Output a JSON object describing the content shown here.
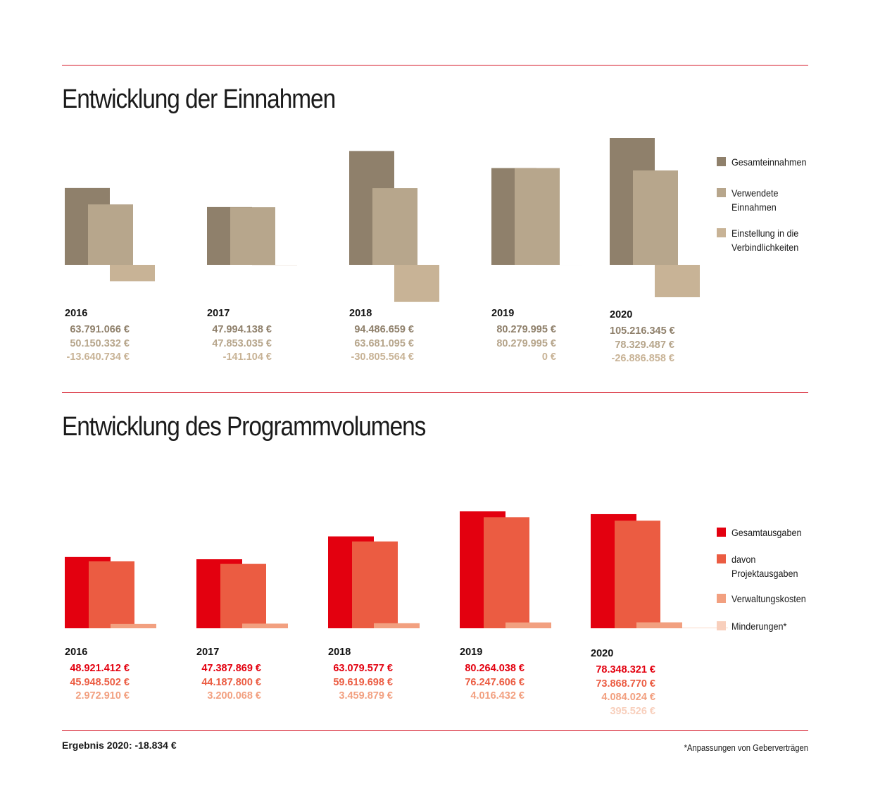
{
  "section1": {
    "title": "Entwicklung der Einnahmen"
  },
  "section2": {
    "title": "Entwicklung des Programmvolumens"
  },
  "colors": {
    "s1": [
      "#8f806b",
      "#b7a68c",
      "#c8b396"
    ],
    "s2": [
      "#e3000f",
      "#eb5c42",
      "#f2a080",
      "#f8cfbc"
    ]
  },
  "chart_data": [
    {
      "type": "bar",
      "categories": [
        "2016",
        "2017",
        "2018",
        "2019",
        "2020"
      ],
      "series": [
        {
          "name": "Gesamteinnahmen",
          "values": [
            63791066,
            47994138,
            94486659,
            80279995,
            105216345
          ],
          "labels": [
            "63.791.066 €",
            "47.994.138 €",
            "94.486.659 €",
            "80.279.995 €",
            "105.216.345 €"
          ]
        },
        {
          "name": "Verwendete\nEinnahmen",
          "values": [
            50150332,
            47853035,
            63681095,
            80279995,
            78329487
          ],
          "labels": [
            "50.150.332 €",
            "47.853.035 €",
            "63.681.095 €",
            "80.279.995 €",
            "78.329.487 €"
          ]
        },
        {
          "name": "Einstellung in die\nVerbindlichkeiten",
          "values": [
            -13640734,
            -141104,
            -30805564,
            0,
            -26886858
          ],
          "labels": [
            "-13.640.734 €",
            "-141.104 €",
            "-30.805.564 €",
            "0 €",
            "-26.886.858 €"
          ]
        }
      ]
    },
    {
      "type": "bar",
      "categories": [
        "2016",
        "2017",
        "2018",
        "2019",
        "2020"
      ],
      "series": [
        {
          "name": "Gesamtausgaben",
          "values": [
            48921412,
            47387869,
            63079577,
            80264038,
            78348321
          ],
          "labels": [
            "48.921.412 €",
            "47.387.869 €",
            "63.079.577 €",
            "80.264.038 €",
            "78.348.321 €"
          ]
        },
        {
          "name": "davon\nProjektausgaben",
          "values": [
            45948502,
            44187800,
            59619698,
            76247606,
            73868770
          ],
          "labels": [
            "45.948.502 €",
            "44.187.800 €",
            "59.619.698 €",
            "76.247.606 €",
            "73.868.770 €"
          ]
        },
        {
          "name": "Verwaltungskosten",
          "values": [
            2972910,
            3200068,
            3459879,
            4016432,
            4084024
          ],
          "labels": [
            "2.972.910 €",
            "3.200.068 €",
            "3.459.879 €",
            "4.016.432 €",
            "4.084.024 €"
          ]
        },
        {
          "name": "Minderungen*",
          "values": [
            null,
            null,
            null,
            null,
            395526
          ],
          "labels": [
            "",
            "",
            "",
            "",
            "395.526 €"
          ]
        }
      ]
    }
  ],
  "footer": {
    "result": "Ergebnis 2020: -18.834 €",
    "footnote": "*Anpassungen von Geberverträgen"
  }
}
